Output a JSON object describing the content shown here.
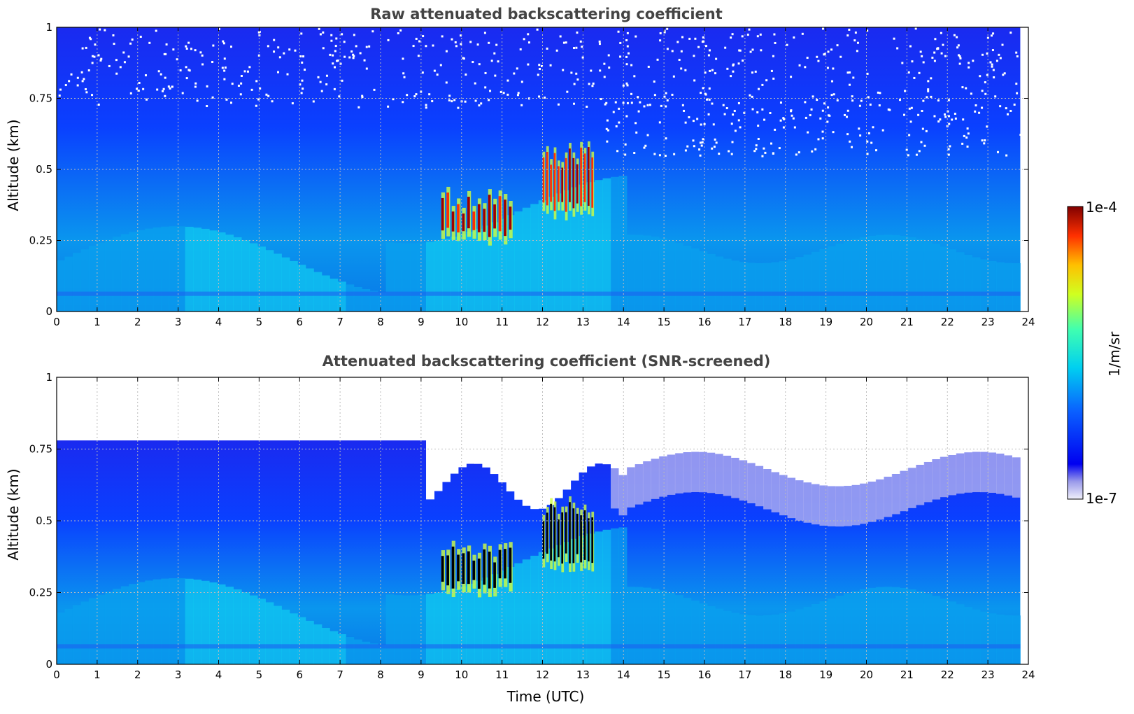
{
  "chart_data": [
    {
      "type": "heatmap",
      "title": "Raw attenuated backscattering coefficient",
      "xlabel": "",
      "ylabel": "Altitude (km)",
      "xlim": [
        0,
        24
      ],
      "ylim": [
        0,
        1
      ],
      "x_ticks": [
        "0",
        "1",
        "2",
        "3",
        "4",
        "5",
        "6",
        "7",
        "8",
        "9",
        "10",
        "11",
        "12",
        "13",
        "14",
        "15",
        "16",
        "17",
        "18",
        "19",
        "20",
        "21",
        "22",
        "23",
        "24"
      ],
      "y_ticks": [
        "0",
        "0.25",
        "0.5",
        "0.75",
        "1"
      ],
      "grid": true,
      "data_extent_hours": [
        0,
        23.8
      ],
      "features": [
        {
          "x_range": [
            9.5,
            11.3
          ],
          "alt_range": [
            0.26,
            0.42
          ],
          "level": "high"
        },
        {
          "x_range": [
            12.0,
            13.3
          ],
          "alt_range": [
            0.35,
            0.58
          ],
          "level": "high"
        }
      ]
    },
    {
      "type": "heatmap",
      "title": "Attenuated backscattering coefficient (SNR-screened)",
      "xlabel": "Time (UTC)",
      "ylabel": "Altitude (km)",
      "xlim": [
        0,
        24
      ],
      "ylim": [
        0,
        1
      ],
      "x_ticks": [
        "0",
        "1",
        "2",
        "3",
        "4",
        "5",
        "6",
        "7",
        "8",
        "9",
        "10",
        "11",
        "12",
        "13",
        "14",
        "15",
        "16",
        "17",
        "18",
        "19",
        "20",
        "21",
        "22",
        "23",
        "24"
      ],
      "y_ticks": [
        "0",
        "0.25",
        "0.5",
        "0.75",
        "1"
      ],
      "grid": true,
      "data_extent_hours": [
        0,
        23.8
      ],
      "features": [
        {
          "x_range": [
            9.5,
            11.3
          ],
          "alt_range": [
            0.26,
            0.42
          ],
          "level": "saturated"
        },
        {
          "x_range": [
            12.0,
            13.3
          ],
          "alt_range": [
            0.35,
            0.58
          ],
          "level": "saturated"
        }
      ]
    }
  ],
  "colorbar": {
    "label": "1/m/sr",
    "max_label": "1e-4",
    "min_label": "1e-7",
    "scale": "log",
    "range": [
      1e-07,
      0.0001
    ],
    "colormap": "jet"
  }
}
